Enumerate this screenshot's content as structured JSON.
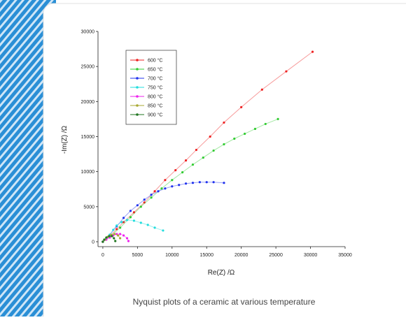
{
  "chart_data": {
    "type": "line",
    "x_label": "Re(Z) /Ω",
    "y_label": "-Im(Z) /Ω",
    "xlim": [
      -700,
      35000
    ],
    "ylim": [
      -700,
      30000
    ],
    "xticks": [
      0,
      5000,
      10000,
      15000,
      20000,
      25000,
      30000,
      35000
    ],
    "yticks": [
      0,
      5000,
      10000,
      15000,
      20000,
      25000,
      30000
    ],
    "legend": "upper left",
    "series": [
      {
        "name": "600 °C",
        "color": "#ee2222",
        "x": [
          0,
          1000,
          2000,
          3000,
          4500,
          6000,
          7500,
          9000,
          10500,
          12000,
          13500,
          15500,
          17500,
          20000,
          23000,
          26500,
          30300
        ],
        "values": [
          0,
          800,
          1800,
          2800,
          4200,
          5600,
          7200,
          8800,
          10200,
          11600,
          13100,
          15000,
          17000,
          19200,
          21700,
          24300,
          27100
        ]
      },
      {
        "name": "650 °C",
        "color": "#33cc33",
        "x": [
          0,
          1000,
          2500,
          4000,
          5500,
          7000,
          8500,
          10000,
          11500,
          13000,
          14500,
          16000,
          17500,
          19000,
          20500,
          22000,
          23500,
          25300
        ],
        "values": [
          0,
          700,
          2000,
          3500,
          5000,
          6300,
          7600,
          8800,
          9900,
          11000,
          12000,
          13000,
          13900,
          14700,
          15400,
          16100,
          16800,
          17500
        ]
      },
      {
        "name": "700 °C",
        "color": "#2233ee",
        "x": [
          0,
          1000,
          2000,
          3000,
          4000,
          5000,
          6000,
          7000,
          8000,
          9000,
          10000,
          11000,
          12000,
          13000,
          14000,
          15000,
          16000,
          17500
        ],
        "values": [
          0,
          1000,
          2200,
          3400,
          4400,
          5200,
          6000,
          6700,
          7200,
          7600,
          7900,
          8100,
          8300,
          8400,
          8500,
          8500,
          8500,
          8400
        ]
      },
      {
        "name": "750 °C",
        "color": "#22dddd",
        "x": [
          0,
          500,
          1000,
          1500,
          2000,
          2700,
          3500,
          4500,
          5500,
          6500,
          7500,
          8700
        ],
        "values": [
          0,
          500,
          1000,
          1700,
          2300,
          2800,
          3100,
          3000,
          2700,
          2400,
          2000,
          1600
        ]
      },
      {
        "name": "800 °C",
        "color": "#ee22ee",
        "x": [
          0,
          500,
          1000,
          1500,
          2000,
          2500,
          3000,
          3500,
          3700
        ],
        "values": [
          0,
          300,
          600,
          900,
          1100,
          1100,
          900,
          500,
          100
        ]
      },
      {
        "name": "850 °C",
        "color": "#aaaa33",
        "x": [
          0,
          300,
          700,
          1200,
          1700,
          2200,
          2500
        ],
        "values": [
          0,
          300,
          700,
          1000,
          1100,
          900,
          500
        ]
      },
      {
        "name": "900 °C",
        "color": "#227722",
        "x": [
          0,
          200,
          500,
          900,
          1300,
          1600,
          1800
        ],
        "values": [
          0,
          300,
          600,
          800,
          800,
          500,
          100
        ]
      }
    ]
  },
  "caption": "Nyquist plots of a ceramic at various temperature"
}
